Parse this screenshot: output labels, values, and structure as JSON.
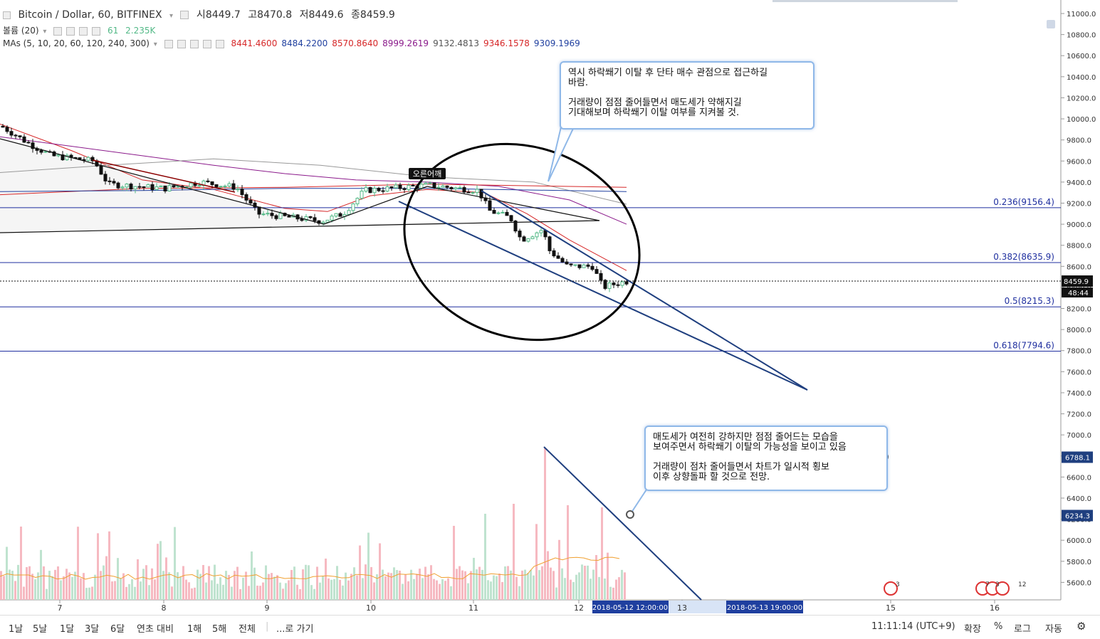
{
  "header": {
    "symbol": "Bitcoin / Dollar, 60, BITFINEX",
    "open_label": "시",
    "open": "8449.7",
    "high_label": "고",
    "high": "8470.8",
    "low_label": "저",
    "low": "8449.6",
    "close_label": "종",
    "close": "8459.9"
  },
  "volume_legend": {
    "label": "볼륨 (20)",
    "value1": "61",
    "value2": "2.235K"
  },
  "ma_legend": {
    "label": "MAs (5, 10, 20, 60, 120, 240, 300)",
    "values": [
      {
        "text": "8441.4600",
        "color": "#d62728"
      },
      {
        "text": "8484.2200",
        "color": "#1f3f9f"
      },
      {
        "text": "8570.8640",
        "color": "#d62728"
      },
      {
        "text": "8999.2619",
        "color": "#8b1a8b"
      },
      {
        "text": "9132.4813",
        "color": "#555555"
      },
      {
        "text": "9346.1578",
        "color": "#d62728"
      },
      {
        "text": "9309.1969",
        "color": "#1f3f9f"
      }
    ]
  },
  "price_axis": {
    "ticks": [
      "11000.0",
      "10800.0",
      "10600.0",
      "10400.0",
      "10200.0",
      "10000.0",
      "9800.0",
      "9600.0",
      "9400.0",
      "9200.0",
      "9000.0",
      "8800.0",
      "8600.0",
      "8400.0",
      "8200.0",
      "8000.0",
      "7800.0",
      "7600.0",
      "7400.0",
      "7200.0",
      "7000.0",
      "6800.0",
      "6600.0",
      "6400.0",
      "6200.0",
      "6000.0",
      "5800.0",
      "5600.0"
    ],
    "current_price": "8459.9",
    "countdown": "48:44",
    "marker_upper": "6788.1",
    "marker_lower": "6234.3"
  },
  "fib_levels": [
    {
      "label": "0.236(9156.4)",
      "price": 9156.4
    },
    {
      "label": "0.382(8635.9)",
      "price": 8635.9
    },
    {
      "label": "0.5(8215.3)",
      "price": 8215.3
    },
    {
      "label": "0.618(7794.6)",
      "price": 7794.6
    }
  ],
  "time_axis": {
    "labels": [
      "7",
      "8",
      "9",
      "10",
      "11",
      "12",
      "13",
      "15",
      "16"
    ],
    "highlight_start": "2018-05-12 12:00:00",
    "highlight_end": "2018-05-13 19:00:00"
  },
  "annotations": {
    "tag": "오른어깨",
    "callout1": "역시 하락쐐기 이탈 후 단타 매수 관점으로 접근하길\n바람.\n\n거래량이 점점 줄어들면서 매도세가 약해지길\n기대해보며 하락쐐기 이탈 여부를 지켜볼 것.",
    "callout2": "매도세가 여전히 강하지만 점점 줄어드는 모습을\n보여주면서 하락쐐기 이탈의 가능성을 보이고 있음\n\n거래량이 점차 줄어들면서 차트가 일시적 횡보\n이후 상향돌파 할 것으로 전망."
  },
  "events": {
    "e1": "3",
    "e2": "7",
    "e3": "3",
    "e4": "12"
  },
  "bottom_bar": {
    "ranges": [
      "1날",
      "5날",
      "1달",
      "3달",
      "6달",
      "연초 대비",
      "1해",
      "5해",
      "전체"
    ],
    "goto": "...로 가기",
    "clock": "11:11:14 (UTC+9)",
    "options": [
      "확장",
      "%",
      "로그",
      "자동"
    ]
  },
  "colors": {
    "up": "#53b987",
    "down": "#111111",
    "fib": "#1f2f9f",
    "trend": "#1f3f7f"
  }
}
